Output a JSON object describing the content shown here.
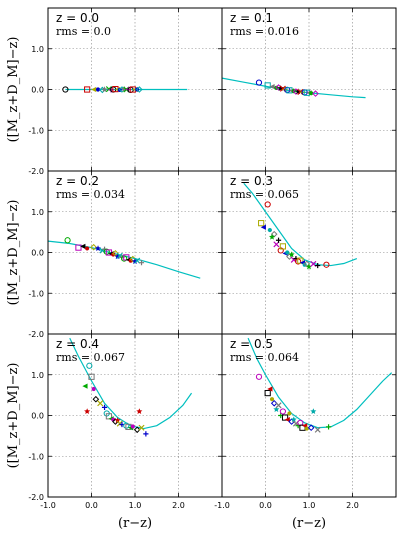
{
  "chart_data": {
    "type": "scatter",
    "layout": "3x2 grid, shared axes",
    "xlabel": "(r−z)",
    "ylabel": "([M_z+D_M]−z)",
    "xlim": [
      -1.0,
      3.0
    ],
    "ylim": [
      -2.0,
      2.0
    ],
    "x_ticks": [
      "-1.0",
      "0.0",
      "1.0",
      "2.0"
    ],
    "y_ticks": [
      "-2.0",
      "-1.0",
      "0.0",
      "1.0"
    ],
    "grid": true,
    "fit_color": "#00bfbf",
    "marker_colors": [
      "#000000",
      "#0000cc",
      "#00aa00",
      "#cc0000",
      "#00aaaa",
      "#bb00bb",
      "#aaaa00",
      "#777777"
    ],
    "marker_shapes": [
      "circle-open",
      "square-open",
      "triangle-filled",
      "circle-filled",
      "diamond-open",
      "star",
      "x",
      "cross"
    ],
    "panels": [
      {
        "title": "z = 0.0",
        "rms": "rms = 0.0",
        "fit_curve": [
          [
            -0.6,
            0.0
          ],
          [
            0.5,
            0.0
          ],
          [
            1.5,
            0.0
          ],
          [
            2.2,
            0.0
          ]
        ],
        "points": [
          [
            -0.6,
            0.0
          ],
          [
            -0.1,
            0.0
          ],
          [
            0.05,
            0.0
          ],
          [
            0.15,
            0.0
          ],
          [
            0.25,
            -0.01
          ],
          [
            0.3,
            0.0
          ],
          [
            0.4,
            0.01
          ],
          [
            0.45,
            -0.01
          ],
          [
            0.5,
            0.0
          ],
          [
            0.55,
            0.01
          ],
          [
            0.6,
            0.0
          ],
          [
            0.65,
            -0.01
          ],
          [
            0.7,
            0.0
          ],
          [
            0.75,
            0.01
          ],
          [
            0.8,
            0.0
          ],
          [
            0.85,
            0.0
          ],
          [
            0.9,
            -0.01
          ],
          [
            0.95,
            0.0
          ],
          [
            1.0,
            0.0
          ],
          [
            1.05,
            0.0
          ],
          [
            1.1,
            0.0
          ]
        ]
      },
      {
        "title": "z = 0.1",
        "rms": "rms = 0.016",
        "fit_curve": [
          [
            -1.0,
            0.28
          ],
          [
            -0.5,
            0.18
          ],
          [
            0.0,
            0.08
          ],
          [
            0.5,
            -0.02
          ],
          [
            1.0,
            -0.08
          ],
          [
            1.5,
            -0.13
          ],
          [
            2.0,
            -0.18
          ],
          [
            2.3,
            -0.2
          ]
        ],
        "points": [
          [
            -0.15,
            0.17
          ],
          [
            0.05,
            0.1
          ],
          [
            0.15,
            0.07
          ],
          [
            0.25,
            0.04
          ],
          [
            0.3,
            0.05
          ],
          [
            0.35,
            0.03
          ],
          [
            0.4,
            0.02
          ],
          [
            0.45,
            0.0
          ],
          [
            0.5,
            -0.01
          ],
          [
            0.55,
            -0.02
          ],
          [
            0.6,
            -0.03
          ],
          [
            0.65,
            -0.04
          ],
          [
            0.7,
            -0.05
          ],
          [
            0.75,
            -0.05
          ],
          [
            0.8,
            -0.06
          ],
          [
            0.85,
            -0.07
          ],
          [
            0.9,
            -0.07
          ],
          [
            0.95,
            -0.08
          ],
          [
            1.0,
            -0.08
          ],
          [
            1.05,
            -0.09
          ],
          [
            1.15,
            -0.1
          ]
        ]
      },
      {
        "title": "z = 0.2",
        "rms": "rms = 0.034",
        "fit_curve": [
          [
            -1.0,
            0.28
          ],
          [
            -0.5,
            0.22
          ],
          [
            0.0,
            0.12
          ],
          [
            0.5,
            -0.02
          ],
          [
            1.0,
            -0.15
          ],
          [
            1.5,
            -0.3
          ],
          [
            2.0,
            -0.47
          ],
          [
            2.5,
            -0.63
          ]
        ],
        "points": [
          [
            -0.55,
            0.3
          ],
          [
            -0.3,
            0.12
          ],
          [
            -0.2,
            0.15
          ],
          [
            -0.1,
            0.1
          ],
          [
            0.05,
            0.13
          ],
          [
            0.15,
            0.1
          ],
          [
            0.25,
            0.05
          ],
          [
            0.3,
            0.08
          ],
          [
            0.35,
            0.02
          ],
          [
            0.4,
            0.0
          ],
          [
            0.45,
            -0.03
          ],
          [
            0.5,
            -0.05
          ],
          [
            0.55,
            -0.02
          ],
          [
            0.6,
            -0.1
          ],
          [
            0.65,
            -0.08
          ],
          [
            0.7,
            -0.12
          ],
          [
            0.75,
            -0.15
          ],
          [
            0.8,
            -0.12
          ],
          [
            0.85,
            -0.18
          ],
          [
            0.9,
            -0.2
          ],
          [
            0.95,
            -0.16
          ],
          [
            1.0,
            -0.22
          ],
          [
            1.05,
            -0.2
          ],
          [
            1.15,
            -0.25
          ]
        ]
      },
      {
        "title": "z = 0.3",
        "rms": "rms = 0.065",
        "fit_curve": [
          [
            -0.5,
            1.7
          ],
          [
            -0.3,
            1.45
          ],
          [
            0.0,
            1.0
          ],
          [
            0.3,
            0.55
          ],
          [
            0.6,
            0.1
          ],
          [
            0.9,
            -0.18
          ],
          [
            1.2,
            -0.3
          ],
          [
            1.5,
            -0.32
          ],
          [
            1.8,
            -0.27
          ],
          [
            2.1,
            -0.15
          ]
        ],
        "points": [
          [
            0.05,
            1.18
          ],
          [
            -0.1,
            0.72
          ],
          [
            -0.05,
            0.62
          ],
          [
            0.1,
            0.55
          ],
          [
            0.2,
            0.45
          ],
          [
            0.15,
            0.38
          ],
          [
            0.25,
            0.2
          ],
          [
            0.3,
            0.3
          ],
          [
            0.35,
            0.05
          ],
          [
            0.4,
            0.15
          ],
          [
            0.45,
            -0.02
          ],
          [
            0.5,
            0.0
          ],
          [
            0.55,
            -0.1
          ],
          [
            0.6,
            -0.05
          ],
          [
            0.65,
            -0.18
          ],
          [
            0.7,
            -0.15
          ],
          [
            0.75,
            -0.22
          ],
          [
            0.8,
            -0.2
          ],
          [
            0.85,
            -0.25
          ],
          [
            0.9,
            -0.3
          ],
          [
            0.95,
            -0.28
          ],
          [
            1.0,
            -0.35
          ],
          [
            1.1,
            -0.28
          ],
          [
            1.2,
            -0.32
          ],
          [
            1.4,
            -0.3
          ]
        ]
      },
      {
        "title": "z = 0.4",
        "rms": "rms = 0.067",
        "fit_curve": [
          [
            -0.5,
            1.9
          ],
          [
            -0.3,
            1.45
          ],
          [
            0.0,
            0.85
          ],
          [
            0.3,
            0.3
          ],
          [
            0.6,
            -0.05
          ],
          [
            0.9,
            -0.25
          ],
          [
            1.2,
            -0.32
          ],
          [
            1.5,
            -0.25
          ],
          [
            1.8,
            -0.05
          ],
          [
            2.1,
            0.25
          ],
          [
            2.3,
            0.55
          ]
        ],
        "points": [
          [
            -0.05,
            1.22
          ],
          [
            0.0,
            0.95
          ],
          [
            -0.15,
            0.72
          ],
          [
            0.05,
            0.65
          ],
          [
            0.1,
            0.4
          ],
          [
            -0.1,
            0.1
          ],
          [
            0.2,
            0.3
          ],
          [
            0.3,
            0.2
          ],
          [
            0.35,
            0.05
          ],
          [
            0.4,
            -0.02
          ],
          [
            0.45,
            -0.08
          ],
          [
            0.5,
            -0.1
          ],
          [
            0.55,
            -0.15
          ],
          [
            0.6,
            -0.12
          ],
          [
            0.65,
            -0.2
          ],
          [
            0.7,
            -0.22
          ],
          [
            0.8,
            -0.25
          ],
          [
            0.85,
            -0.28
          ],
          [
            0.9,
            -0.3
          ],
          [
            0.95,
            -0.27
          ],
          [
            1.05,
            -0.35
          ],
          [
            1.1,
            0.1
          ],
          [
            1.15,
            -0.3
          ],
          [
            1.25,
            -0.45
          ]
        ]
      },
      {
        "title": "z = 0.5",
        "rms": "rms = 0.064",
        "fit_curve": [
          [
            -0.4,
            1.9
          ],
          [
            -0.2,
            1.4
          ],
          [
            0.0,
            1.0
          ],
          [
            0.3,
            0.45
          ],
          [
            0.6,
            0.05
          ],
          [
            0.9,
            -0.18
          ],
          [
            1.2,
            -0.3
          ],
          [
            1.5,
            -0.28
          ],
          [
            1.8,
            -0.12
          ],
          [
            2.1,
            0.15
          ],
          [
            2.4,
            0.5
          ],
          [
            2.7,
            0.85
          ],
          [
            2.9,
            1.05
          ]
        ],
        "points": [
          [
            -0.15,
            0.95
          ],
          [
            0.05,
            0.55
          ],
          [
            0.1,
            0.65
          ],
          [
            0.15,
            0.4
          ],
          [
            0.2,
            0.3
          ],
          [
            0.25,
            0.15
          ],
          [
            0.3,
            0.25
          ],
          [
            0.35,
            0.0
          ],
          [
            0.4,
            0.1
          ],
          [
            0.45,
            -0.05
          ],
          [
            0.5,
            -0.1
          ],
          [
            0.55,
            0.05
          ],
          [
            0.6,
            -0.15
          ],
          [
            0.65,
            -0.1
          ],
          [
            0.7,
            -0.2
          ],
          [
            0.75,
            -0.25
          ],
          [
            0.8,
            -0.18
          ],
          [
            0.85,
            -0.3
          ],
          [
            0.9,
            -0.25
          ],
          [
            0.95,
            -0.32
          ],
          [
            1.05,
            -0.3
          ],
          [
            1.1,
            0.1
          ],
          [
            1.2,
            -0.35
          ],
          [
            1.45,
            -0.28
          ]
        ]
      }
    ]
  }
}
